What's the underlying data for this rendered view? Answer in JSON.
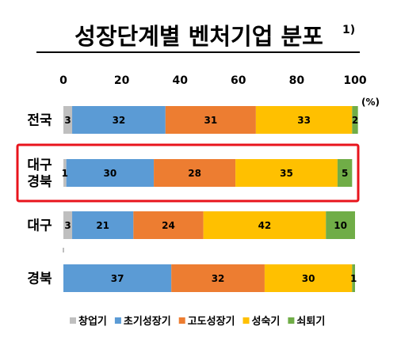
{
  "title": {
    "main": "성장단계별 벤처기업 분포",
    "superscript": "1)"
  },
  "unit_label": "(%)",
  "highlight_color": "#e8141c",
  "chart_data": {
    "type": "bar",
    "orientation": "horizontal",
    "stacked": true,
    "categories": [
      "전국",
      "대구\n경북",
      "대구",
      "경북"
    ],
    "highlighted_category": "대구\n경북",
    "series": [
      {
        "name": "창업기",
        "color": "#bfbfbf",
        "values": [
          3,
          1,
          3,
          0
        ]
      },
      {
        "name": "초기성장기",
        "color": "#5b9bd5",
        "values": [
          32,
          30,
          21,
          37
        ]
      },
      {
        "name": "고도성장기",
        "color": "#ed7d31",
        "values": [
          31,
          28,
          24,
          32
        ]
      },
      {
        "name": "성숙기",
        "color": "#ffc000",
        "values": [
          33,
          35,
          42,
          30
        ]
      },
      {
        "name": "쇠퇴기",
        "color": "#70ad47",
        "values": [
          2,
          5,
          10,
          1
        ]
      }
    ],
    "x_ticks": [
      0,
      20,
      40,
      60,
      80,
      100
    ],
    "xlim": [
      0,
      100
    ],
    "legend_position": "bottom",
    "grid": false
  }
}
